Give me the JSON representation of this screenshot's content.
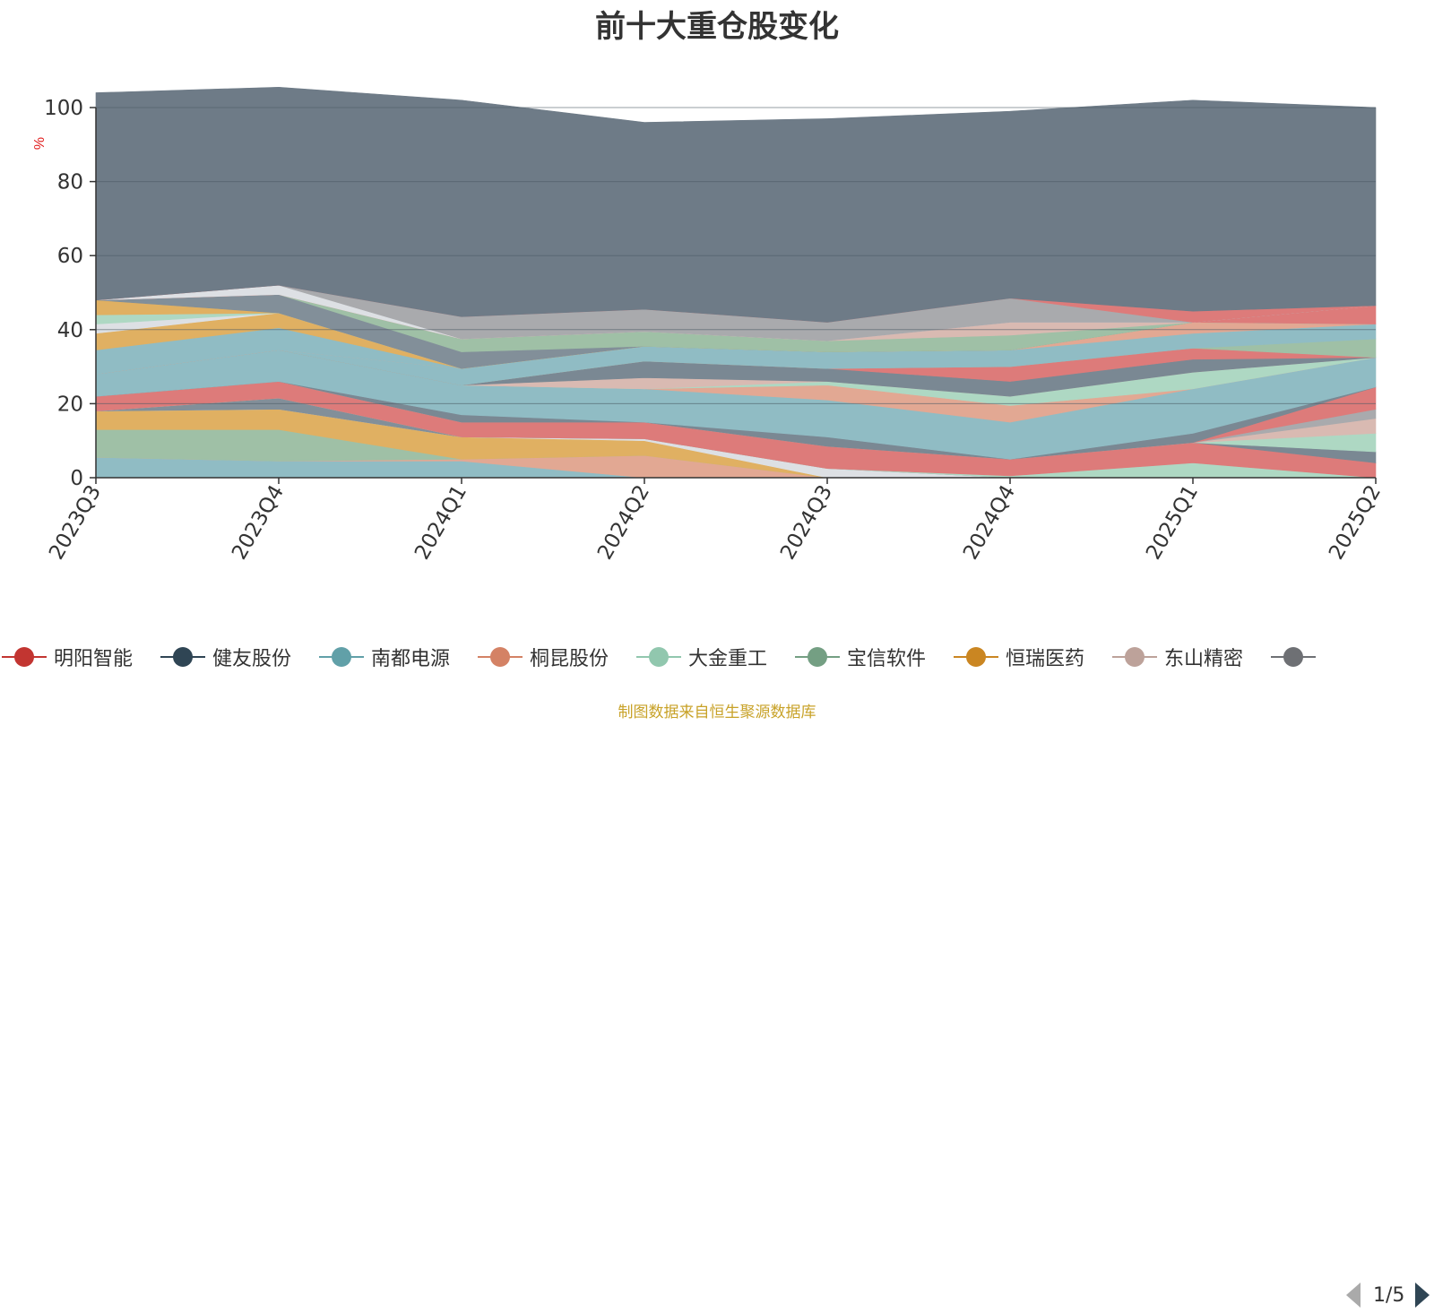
{
  "title": "前十大重仓股变化",
  "source_note": "制图数据来自恒生聚源数据库",
  "pager": {
    "text": "1/5"
  },
  "legend": [
    {
      "name": "明阳智能",
      "color": "#c23531"
    },
    {
      "name": "健友股份",
      "color": "#2f4554"
    },
    {
      "name": "南都电源",
      "color": "#61a0a8"
    },
    {
      "name": "桐昆股份",
      "color": "#d48265"
    },
    {
      "name": "大金重工",
      "color": "#91c7ae"
    },
    {
      "name": "宝信软件",
      "color": "#749f83"
    },
    {
      "name": "恒瑞医药",
      "color": "#ca8622"
    },
    {
      "name": "东山精密",
      "color": "#bda29a"
    },
    {
      "name": "",
      "color": "#6e7074"
    }
  ],
  "chart_data": {
    "type": "area",
    "stacked": true,
    "title": "前十大重仓股变化",
    "ylabel": "%",
    "ylim": [
      0,
      100
    ],
    "yticks": [
      0,
      20,
      40,
      60,
      80,
      100
    ],
    "categories": [
      "2023Q3",
      "2023Q4",
      "2024Q1",
      "2024Q2",
      "2024Q3",
      "2024Q4",
      "2025Q1",
      "2025Q2"
    ],
    "grid": true,
    "series": [
      {
        "color": "#90bcc4",
        "values": [
          5.5,
          4.5,
          4.5,
          0,
          0,
          0,
          0,
          0
        ]
      },
      {
        "color": "#e2a893",
        "values": [
          0,
          0,
          0.5,
          6,
          0,
          0,
          0,
          0
        ]
      },
      {
        "color": "#9fc0a6",
        "values": [
          7.5,
          8.5,
          0,
          0,
          0,
          0,
          0,
          0
        ]
      },
      {
        "color": "#e0b062",
        "values": [
          5,
          5.5,
          6,
          4,
          0,
          0,
          0,
          0
        ]
      },
      {
        "color": "#dde0e4",
        "values": [
          0,
          0,
          0,
          0.5,
          2.5,
          0,
          0,
          0
        ]
      },
      {
        "color": "#828f99",
        "values": [
          0,
          3,
          0,
          0,
          0,
          0,
          0,
          0
        ]
      },
      {
        "color": "#aed8c3",
        "values": [
          0,
          0,
          0,
          0,
          0,
          0.5,
          4,
          0
        ]
      },
      {
        "color": "#dd7b7a",
        "values": [
          4,
          4.5,
          4,
          4.5,
          6,
          4.5,
          5.5,
          4
        ]
      },
      {
        "color": "#7a8893",
        "values": [
          0,
          0,
          0,
          0,
          0,
          0,
          0,
          3
        ]
      },
      {
        "color": "#aed8c3",
        "values": [
          0,
          0,
          0,
          0,
          0,
          0,
          0,
          5
        ]
      },
      {
        "color": "#d9bab2",
        "values": [
          0,
          0,
          0,
          0,
          0,
          0,
          0,
          4
        ]
      },
      {
        "color": "#a9aaad",
        "values": [
          0,
          0,
          0,
          0,
          0,
          0,
          0,
          2.5
        ]
      },
      {
        "color": "#dd7b7a",
        "values": [
          0,
          0,
          0,
          0,
          0,
          0,
          0,
          6
        ]
      },
      {
        "color": "#7a8893",
        "values": [
          0,
          0,
          2,
          0,
          2.5,
          0,
          2.5,
          0
        ]
      },
      {
        "color": "#90bcc4",
        "values": [
          6,
          8.5,
          8,
          9,
          10,
          10,
          12,
          8
        ]
      },
      {
        "color": "#e2a893",
        "values": [
          0,
          0,
          0,
          0,
          4,
          4.5,
          0,
          0
        ]
      },
      {
        "color": "#aed8c3",
        "values": [
          0,
          0,
          0,
          0,
          1,
          2.5,
          4.5,
          0
        ]
      },
      {
        "color": "#d9bab2",
        "values": [
          0,
          0,
          0,
          3,
          0,
          0,
          0,
          0
        ]
      },
      {
        "color": "#7a8893",
        "values": [
          0,
          0,
          0,
          4.5,
          3.5,
          4,
          3.5,
          0
        ]
      },
      {
        "color": "#dd7b7a",
        "values": [
          0,
          0,
          0,
          0,
          0,
          4,
          3,
          0
        ]
      },
      {
        "color": "#9fc0a6",
        "values": [
          0,
          0,
          0,
          0,
          0,
          0,
          0,
          5
        ]
      },
      {
        "color": "#90bcc4",
        "values": [
          0,
          0,
          4.5,
          4,
          4.5,
          4.5,
          4,
          4
        ]
      },
      {
        "color": "#e2a893",
        "values": [
          0,
          0,
          0,
          0,
          0,
          0,
          3,
          0
        ]
      },
      {
        "color": "#90bcc4",
        "values": [
          6.5,
          6,
          0,
          0,
          0,
          0,
          0,
          0
        ]
      },
      {
        "color": "#e0b062",
        "values": [
          4.5,
          4,
          0,
          0,
          0,
          0,
          0,
          0
        ]
      },
      {
        "color": "#dde0e4",
        "values": [
          2.5,
          0,
          0,
          0,
          0,
          0,
          0,
          0
        ]
      },
      {
        "color": "#aed8c3",
        "values": [
          2.5,
          0,
          0,
          0,
          0,
          0,
          0,
          0
        ]
      },
      {
        "color": "#e0b062",
        "values": [
          4,
          0,
          0,
          0,
          0,
          0,
          0,
          0
        ]
      },
      {
        "color": "#828f99",
        "values": [
          0,
          5,
          4.5,
          0,
          0,
          0,
          0,
          0
        ]
      },
      {
        "color": "#9fc0a6",
        "values": [
          0,
          0,
          3.5,
          4,
          3,
          4,
          0,
          0
        ]
      },
      {
        "color": "#d9bab2",
        "values": [
          0,
          0,
          0,
          0,
          0,
          3.5,
          0,
          0
        ]
      },
      {
        "color": "#dd7b7a",
        "values": [
          0,
          0,
          0,
          0,
          0,
          0,
          0,
          5
        ]
      },
      {
        "color": "#dde0e4",
        "values": [
          0,
          2.5,
          0,
          0,
          0,
          0,
          0,
          0
        ]
      },
      {
        "color": "#a9aaad",
        "values": [
          0,
          0,
          6,
          6,
          5,
          6.5,
          0,
          0
        ]
      },
      {
        "color": "#dd7b7a",
        "values": [
          0,
          0,
          0,
          0,
          0,
          0,
          3,
          0
        ]
      },
      {
        "color": "#6e7b87",
        "values": [
          56,
          53.5,
          58.5,
          50.5,
          55,
          50.5,
          57,
          53.5
        ]
      }
    ]
  }
}
